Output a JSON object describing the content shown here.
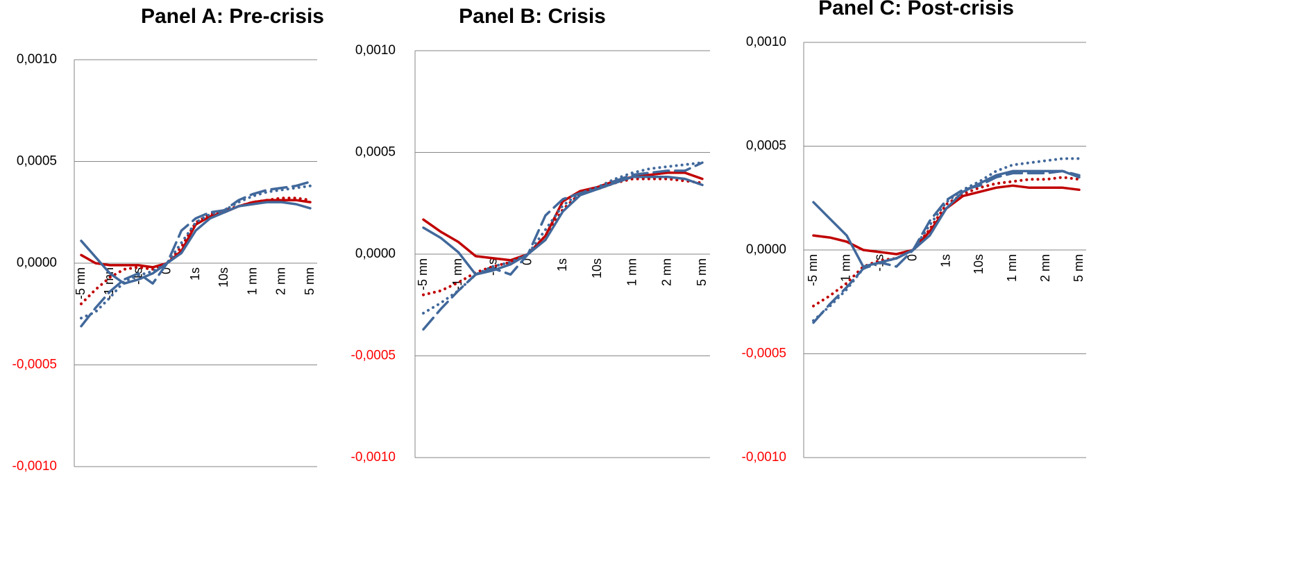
{
  "chart_data": [
    {
      "type": "line",
      "title": "Panel A: Pre-crisis",
      "categories": [
        "-5 mn",
        null,
        "-1 mn",
        null,
        "-1s",
        null,
        "0",
        null,
        "1s",
        null,
        "10s",
        null,
        "1 mn",
        null,
        "2 mn",
        null,
        "5 mn"
      ],
      "ylim": [
        -0.001,
        0.001
      ],
      "yticks": [
        {
          "value": 0.001,
          "label": "0,0010"
        },
        {
          "value": 0.0005,
          "label": "0,0005"
        },
        {
          "value": 0,
          "label": "0,0000"
        },
        {
          "value": -0.0005,
          "label": "-0,0005"
        },
        {
          "value": -0.001,
          "label": "-0,0010"
        }
      ],
      "tick_color": "#000000",
      "negative_tick_color": "#ff0000",
      "grid": true,
      "series": [
        {
          "color": "#c00000",
          "dash": "solid",
          "values": [
            4e-05,
            0.0,
            -1e-05,
            -1e-05,
            -1e-05,
            -2e-05,
            0,
            6e-05,
            0.00019,
            0.00023,
            0.00025,
            0.00028,
            0.0003,
            0.00031,
            0.00031,
            0.00031,
            0.0003
          ]
        },
        {
          "color": "#c00000",
          "dash": "dotted",
          "values": [
            -0.0002,
            -0.00013,
            -7e-05,
            -3e-05,
            -2e-05,
            -3e-05,
            0,
            8e-05,
            0.0002,
            0.00024,
            0.00026,
            0.00028,
            0.0003,
            0.00031,
            0.00032,
            0.00032,
            0.00031
          ]
        },
        {
          "color": "#41689b",
          "dash": "solid",
          "values": [
            0.00011,
            3e-05,
            -5e-05,
            -0.0001,
            -8e-05,
            -5e-05,
            0,
            5e-05,
            0.00016,
            0.00022,
            0.00025,
            0.00028,
            0.00029,
            0.0003,
            0.0003,
            0.00029,
            0.00027
          ]
        },
        {
          "color": "#41689b",
          "dash": "dashed",
          "values": [
            -0.00031,
            -0.00022,
            -0.00014,
            -8e-05,
            -5e-05,
            -0.0001,
            0,
            0.00016,
            0.00022,
            0.00025,
            0.00026,
            0.00031,
            0.00034,
            0.00036,
            0.00037,
            0.00038,
            0.0004
          ]
        },
        {
          "color": "#41689b",
          "dash": "dotted",
          "values": [
            -0.00027,
            -0.00024,
            -0.00017,
            -9e-05,
            -6e-05,
            -4e-05,
            0,
            0.0001,
            0.0002,
            0.00024,
            0.00026,
            0.0003,
            0.00033,
            0.00035,
            0.00036,
            0.00037,
            0.00038
          ]
        }
      ]
    },
    {
      "type": "line",
      "title": "Panel B: Crisis",
      "categories": [
        "-5 mn",
        null,
        "-1 mn",
        null,
        "-1s",
        null,
        "0",
        null,
        "1s",
        null,
        "10s",
        null,
        "1 mn",
        null,
        "2 mn",
        null,
        "5 mn"
      ],
      "ylim": [
        -0.001,
        0.001
      ],
      "yticks": [
        {
          "value": 0.001,
          "label": "0,0010"
        },
        {
          "value": 0.0005,
          "label": "0,0005"
        },
        {
          "value": 0,
          "label": "0,0000"
        },
        {
          "value": -0.0005,
          "label": "-0,0005"
        },
        {
          "value": -0.001,
          "label": "-0,0010"
        }
      ],
      "tick_color": "#000000",
      "negative_tick_color": "#ff0000",
      "grid": true,
      "series": [
        {
          "color": "#c00000",
          "dash": "solid",
          "values": [
            0.00017,
            0.00011,
            6e-05,
            -1e-05,
            -2e-05,
            -3e-05,
            0,
            9e-05,
            0.00026,
            0.00031,
            0.00033,
            0.00036,
            0.00038,
            0.00039,
            0.0004,
            0.0004,
            0.00037
          ]
        },
        {
          "color": "#c00000",
          "dash": "dotted",
          "values": [
            -0.0002,
            -0.00018,
            -0.00014,
            -9e-05,
            -6e-05,
            -4e-05,
            0,
            9e-05,
            0.00022,
            0.0003,
            0.00032,
            0.00035,
            0.00037,
            0.00037,
            0.00037,
            0.00036,
            0.00035
          ]
        },
        {
          "color": "#41689b",
          "dash": "solid",
          "values": [
            0.00013,
            8e-05,
            1e-05,
            -0.0001,
            -8e-05,
            -5e-05,
            0,
            7e-05,
            0.00021,
            0.00029,
            0.00032,
            0.00035,
            0.00038,
            0.00038,
            0.00038,
            0.00037,
            0.00034
          ]
        },
        {
          "color": "#41689b",
          "dash": "dashed",
          "values": [
            -0.00037,
            -0.00027,
            -0.00018,
            -0.0001,
            -7e-05,
            -0.0001,
            0,
            0.00019,
            0.00027,
            0.0003,
            0.00032,
            0.00036,
            0.00039,
            0.0004,
            0.00041,
            0.00041,
            0.00045
          ]
        },
        {
          "color": "#41689b",
          "dash": "dotted",
          "values": [
            -0.00029,
            -0.00024,
            -0.00018,
            -0.0001,
            -6e-05,
            -4e-05,
            0,
            0.00012,
            0.00024,
            0.0003,
            0.00033,
            0.00037,
            0.0004,
            0.00042,
            0.00043,
            0.00044,
            0.00045
          ]
        }
      ]
    },
    {
      "type": "line",
      "title": "Panel C: Post-crisis",
      "categories": [
        "-5 mn",
        null,
        "-1 mn",
        null,
        "-1s",
        null,
        "0",
        null,
        "1s",
        null,
        "10s",
        null,
        "1 mn",
        null,
        "2 mn",
        null,
        "5 mn"
      ],
      "ylim": [
        -0.001,
        0.001
      ],
      "yticks": [
        {
          "value": 0.001,
          "label": "0,0010"
        },
        {
          "value": 0.0005,
          "label": "0,0005"
        },
        {
          "value": 0,
          "label": "0,0000"
        },
        {
          "value": -0.0005,
          "label": "-0,0005"
        },
        {
          "value": -0.001,
          "label": "-0,0010"
        }
      ],
      "tick_color": "#000000",
      "negative_tick_color": "#ff0000",
      "grid": true,
      "series": [
        {
          "color": "#c00000",
          "dash": "solid",
          "values": [
            7e-05,
            6e-05,
            4e-05,
            0.0,
            -1e-05,
            -2e-05,
            0,
            9e-05,
            0.0002,
            0.00026,
            0.00028,
            0.0003,
            0.00031,
            0.0003,
            0.0003,
            0.0003,
            0.00029
          ]
        },
        {
          "color": "#c00000",
          "dash": "dotted",
          "values": [
            -0.00027,
            -0.00022,
            -0.00016,
            -8e-05,
            -5e-05,
            -4e-05,
            0,
            0.0001,
            0.00022,
            0.00027,
            0.0003,
            0.00032,
            0.00033,
            0.00034,
            0.00034,
            0.00035,
            0.00034
          ]
        },
        {
          "color": "#41689b",
          "dash": "solid",
          "values": [
            0.00023,
            0.00015,
            7e-05,
            -8e-05,
            -6e-05,
            -4e-05,
            0,
            7e-05,
            0.0002,
            0.00028,
            0.00032,
            0.00036,
            0.00038,
            0.00038,
            0.00038,
            0.00038,
            0.00035
          ]
        },
        {
          "color": "#41689b",
          "dash": "dashed",
          "values": [
            -0.00035,
            -0.00026,
            -0.00018,
            -9e-05,
            -6e-05,
            -8e-05,
            0,
            0.00014,
            0.00024,
            0.00029,
            0.00031,
            0.00035,
            0.00037,
            0.00037,
            0.00037,
            0.00038,
            0.00036
          ]
        },
        {
          "color": "#41689b",
          "dash": "dotted",
          "values": [
            -0.00034,
            -0.00027,
            -0.00019,
            -9e-05,
            -6e-05,
            -4e-05,
            0,
            0.00012,
            0.00023,
            0.00029,
            0.00033,
            0.00038,
            0.00041,
            0.00042,
            0.00043,
            0.00044,
            0.00044
          ]
        }
      ]
    }
  ]
}
